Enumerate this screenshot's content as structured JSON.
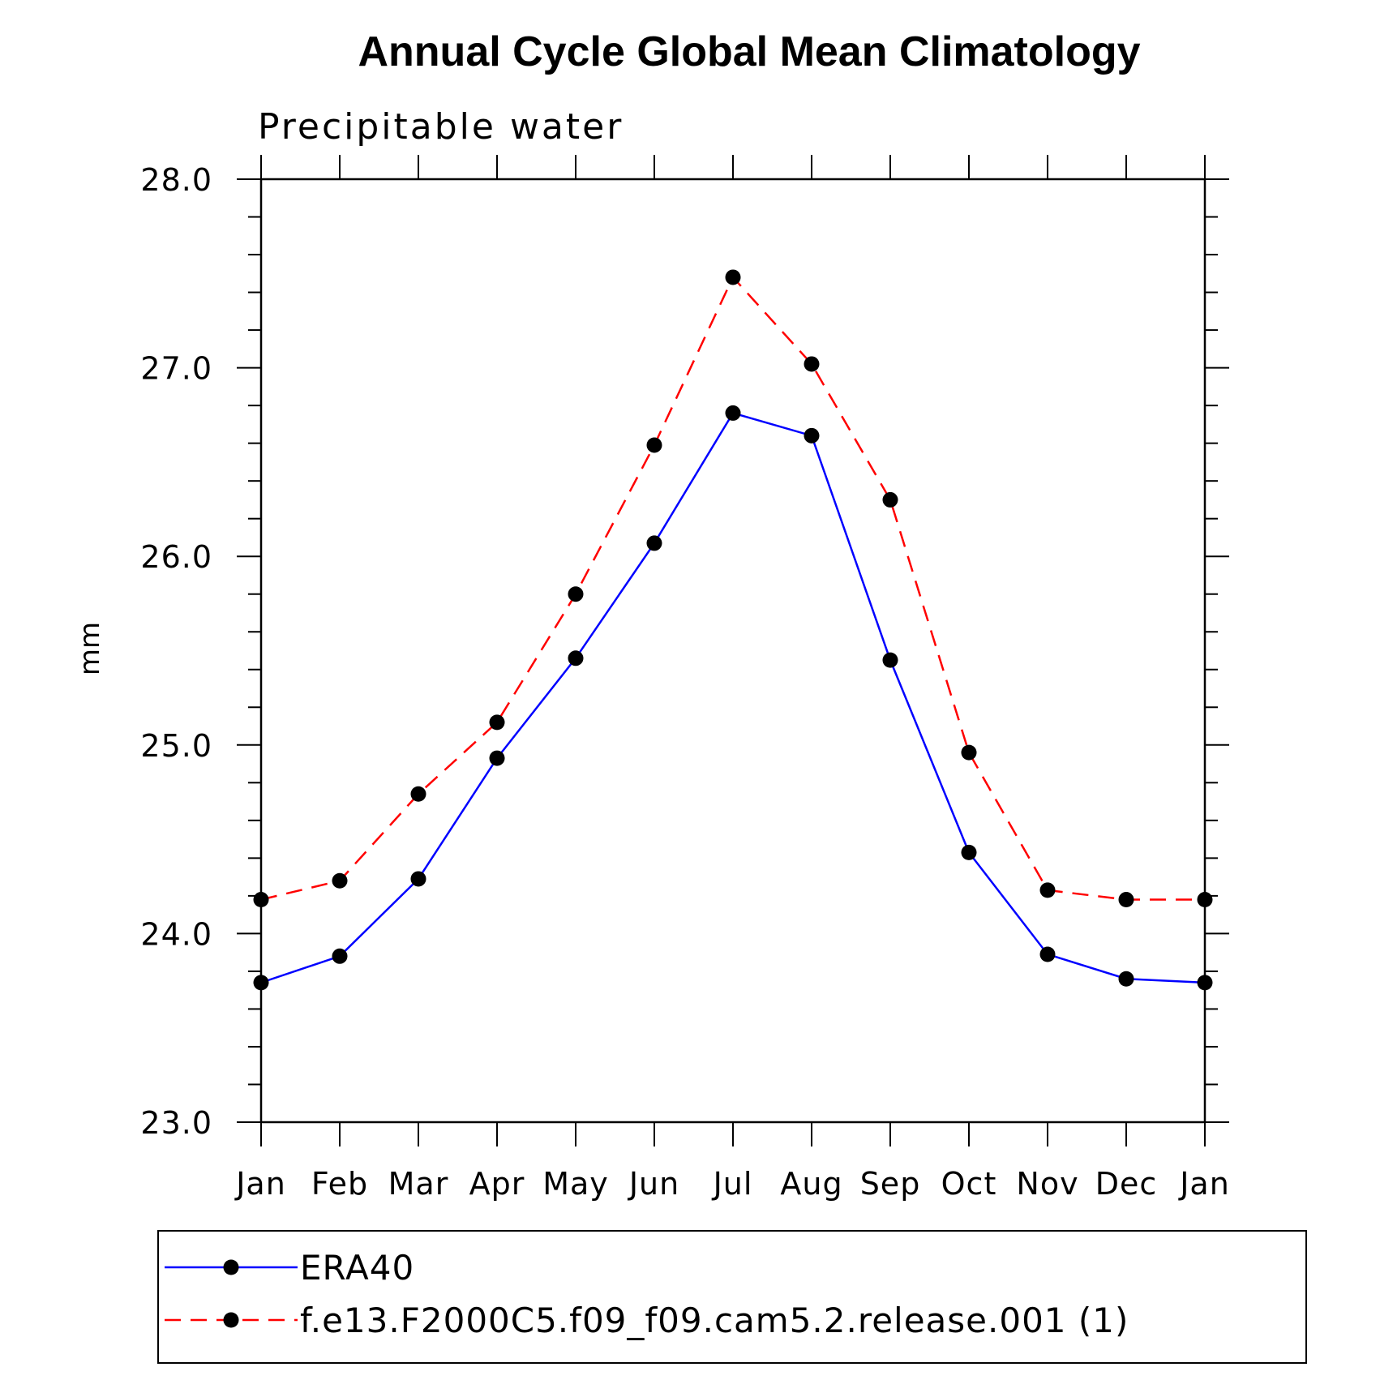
{
  "chart_data": {
    "type": "line",
    "title": "Annual Cycle Global Mean Climatology",
    "subtitle": "Precipitable water",
    "xlabel": "",
    "ylabel": "mm",
    "categories": [
      "Jan",
      "Feb",
      "Mar",
      "Apr",
      "May",
      "Jun",
      "Jul",
      "Aug",
      "Sep",
      "Oct",
      "Nov",
      "Dec",
      "Jan"
    ],
    "ylim": [
      23.0,
      28.0
    ],
    "yticks": [
      "23.0",
      "24.0",
      "25.0",
      "26.0",
      "27.0",
      "28.0"
    ],
    "grid": false,
    "legend_position": "bottom",
    "series": [
      {
        "name": "ERA40",
        "color": "#0000ff",
        "dash": "solid",
        "marker": "filled-circle",
        "values": [
          23.74,
          23.88,
          24.29,
          24.93,
          25.46,
          26.07,
          26.76,
          26.64,
          25.45,
          24.43,
          23.89,
          23.76,
          23.74
        ]
      },
      {
        "name": "f.e13.F2000C5.f09_f09.cam5.2.release.001 (1)",
        "color": "#ff0000",
        "dash": "dashed",
        "marker": "filled-circle",
        "values": [
          24.18,
          24.28,
          24.74,
          25.12,
          25.8,
          26.59,
          27.48,
          27.02,
          26.3,
          24.96,
          24.23,
          24.18,
          24.18
        ]
      }
    ]
  }
}
